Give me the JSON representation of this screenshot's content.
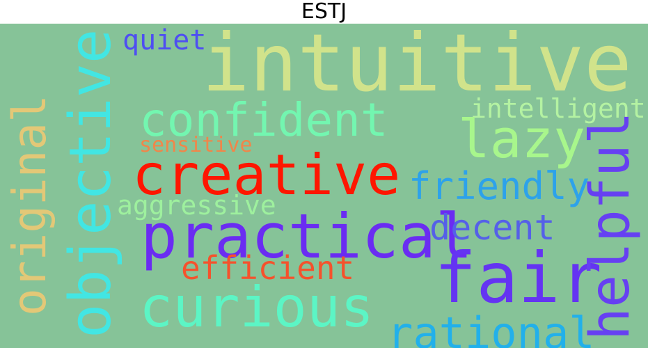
{
  "title": "ESTJ",
  "background": "#86c398",
  "words": {
    "intuitive": {
      "text": "intuitive",
      "color": "#d1e38b"
    },
    "quiet": {
      "text": "quiet",
      "color": "#4e4ef2"
    },
    "confident": {
      "text": "confident",
      "color": "#73f6b0"
    },
    "intelligent": {
      "text": "intelligent",
      "color": "#b4f2a2"
    },
    "lazy": {
      "text": "lazy",
      "color": "#a8f68c"
    },
    "sensitive": {
      "text": "sensitive",
      "color": "#f0864a"
    },
    "creative": {
      "text": "creative",
      "color": "#ff1600"
    },
    "friendly": {
      "text": "friendly",
      "color": "#2da2ea"
    },
    "aggressive": {
      "text": "aggressive",
      "color": "#9ef09e"
    },
    "practical": {
      "text": "practical",
      "color": "#6a2cf2"
    },
    "decent": {
      "text": "decent",
      "color": "#5560e8"
    },
    "efficient": {
      "text": "efficient",
      "color": "#f5522c"
    },
    "fair": {
      "text": "fair",
      "color": "#6434f2"
    },
    "curious": {
      "text": "curious",
      "color": "#5cf5c5"
    },
    "rational": {
      "text": "rational",
      "color": "#22b0ea"
    },
    "original": {
      "text": "original",
      "color": "#e3c877"
    },
    "objective": {
      "text": "objective",
      "color": "#42e6e3"
    },
    "helpful": {
      "text": "helpful",
      "color": "#6640f2"
    }
  }
}
